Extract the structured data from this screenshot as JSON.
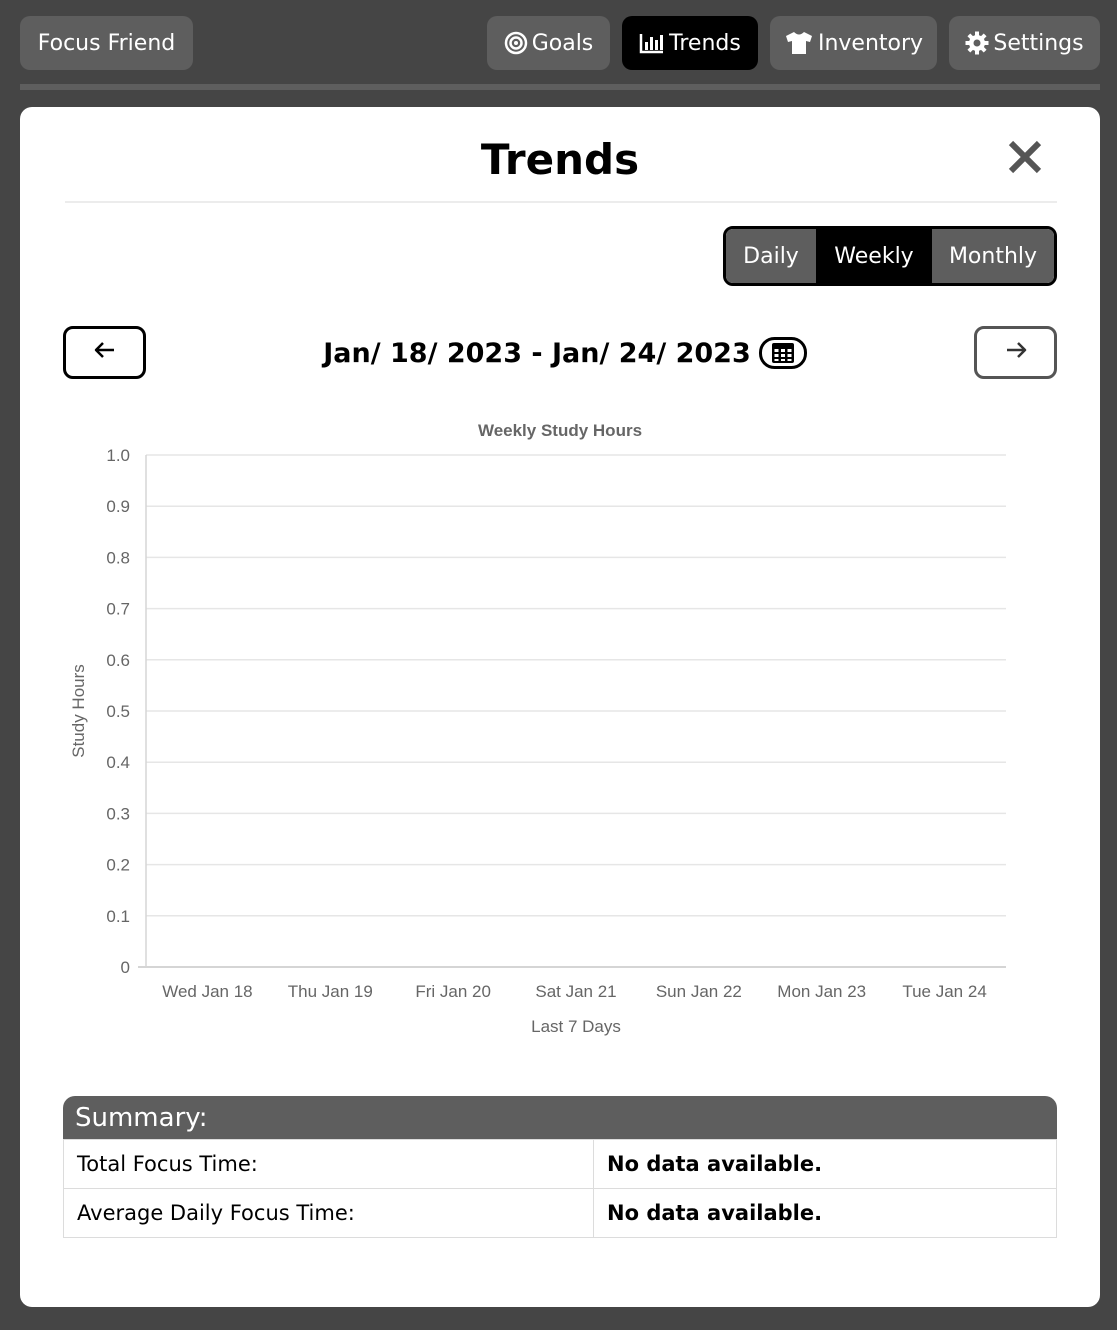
{
  "nav": {
    "brand": "Focus Friend",
    "goals": "Goals",
    "trends": "Trends",
    "inventory": "Inventory",
    "settings": "Settings"
  },
  "modal": {
    "title": "Trends",
    "tabs": [
      "Daily",
      "Weekly",
      "Monthly"
    ],
    "active_tab": "Weekly",
    "date_range": "Jan/ 18/ 2023 - Jan/ 24/ 2023"
  },
  "chart_data": {
    "type": "line",
    "title": "Weekly Study Hours",
    "xlabel": "Last 7 Days",
    "ylabel": "Study Hours",
    "categories": [
      "Wed Jan 18",
      "Thu Jan 19",
      "Fri Jan 20",
      "Sat Jan 21",
      "Sun Jan 22",
      "Mon Jan 23",
      "Tue Jan 24"
    ],
    "yticks": [
      "0",
      "0.1",
      "0.2",
      "0.3",
      "0.4",
      "0.5",
      "0.6",
      "0.7",
      "0.8",
      "0.9",
      "1.0"
    ],
    "ylim": [
      0,
      1
    ],
    "grid": true,
    "series": []
  },
  "summary": {
    "title": "Summary:",
    "rows": [
      {
        "label": "Total Focus Time:",
        "value": "No data available."
      },
      {
        "label": "Average Daily Focus Time:",
        "value": "No data available."
      }
    ]
  },
  "colors": {
    "background": "#454545",
    "button": "#5e5e5e",
    "active": "#000000"
  }
}
